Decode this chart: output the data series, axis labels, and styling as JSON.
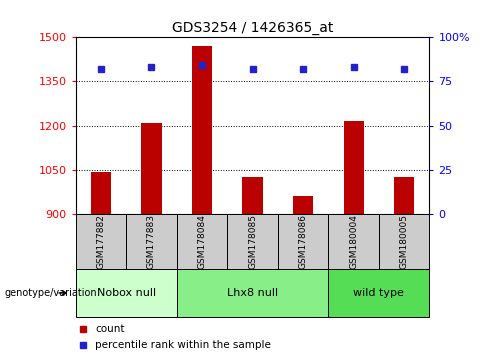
{
  "title": "GDS3254 / 1426365_at",
  "samples": [
    "GSM177882",
    "GSM177883",
    "GSM178084",
    "GSM178085",
    "GSM178086",
    "GSM180004",
    "GSM180005"
  ],
  "counts": [
    1043,
    1210,
    1470,
    1025,
    960,
    1215,
    1025
  ],
  "percentiles": [
    82,
    83,
    84,
    82,
    82,
    83,
    82
  ],
  "ylim_left": [
    900,
    1500
  ],
  "ylim_right": [
    0,
    100
  ],
  "yticks_left": [
    900,
    1050,
    1200,
    1350,
    1500
  ],
  "yticks_right": [
    0,
    25,
    50,
    75,
    100
  ],
  "bar_color": "#bb0000",
  "dot_color": "#2222cc",
  "groups": [
    {
      "label": "Nobox null",
      "start": 0,
      "end": 2,
      "color": "#ccffcc"
    },
    {
      "label": "Lhx8 null",
      "start": 2,
      "end": 5,
      "color": "#88ee88"
    },
    {
      "label": "wild type",
      "start": 5,
      "end": 7,
      "color": "#55dd55"
    }
  ],
  "genotype_label": "genotype/variation",
  "legend_count": "count",
  "legend_percentile": "percentile rank within the sample",
  "sample_box_color": "#cccccc"
}
